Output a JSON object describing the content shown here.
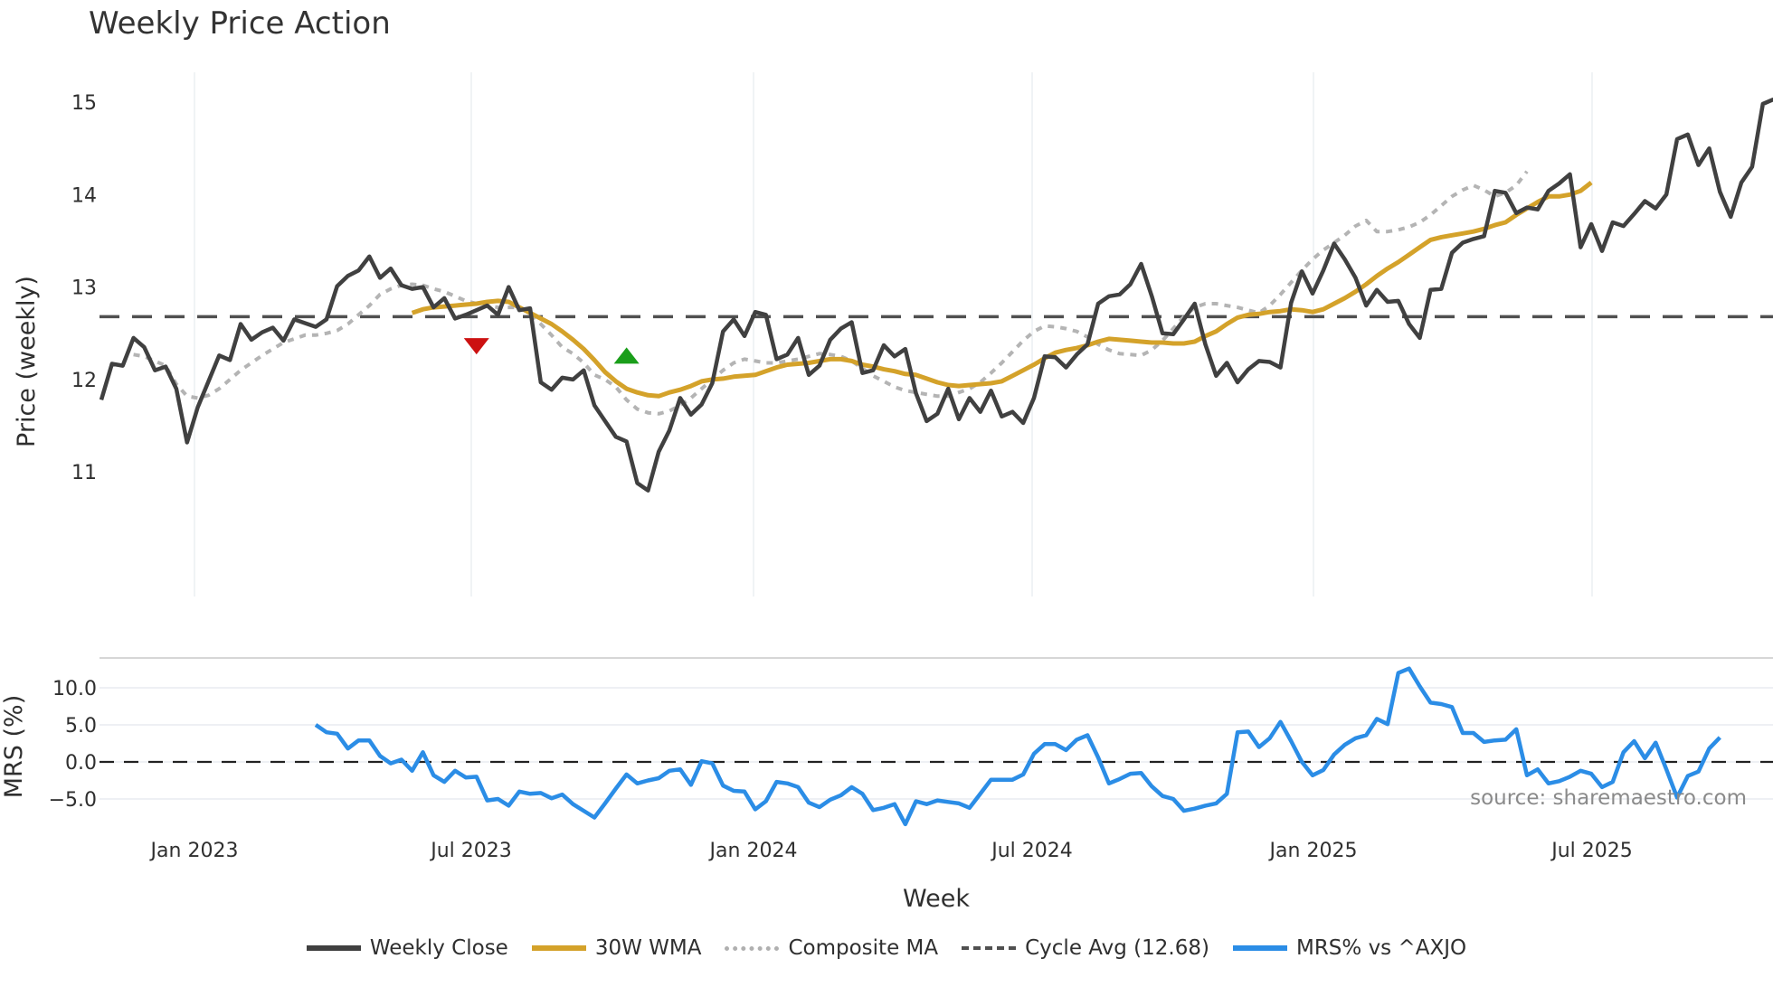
{
  "title": "Weekly Price Action",
  "watermark": "source: sharemaestro.com",
  "legend": [
    {
      "label": "Weekly Close",
      "color": "#404040",
      "style": "solid"
    },
    {
      "label": "30W WMA",
      "color": "#d4a22a",
      "style": "solid"
    },
    {
      "label": "Composite MA",
      "color": "#b0b0b0",
      "style": "dotted"
    },
    {
      "label": "Cycle Avg (12.68)",
      "color": "#505050",
      "style": "dashed"
    },
    {
      "label": "MRS% vs ^AXJO",
      "color": "#2b8de6",
      "style": "solid"
    }
  ],
  "chart_data": [
    {
      "type": "line",
      "title": "Weekly Price Action",
      "xlabel": "Week",
      "ylabel": "Price (weekly)",
      "ylim": [
        10.6,
        15.25
      ],
      "yticks": [
        11,
        12,
        13,
        14,
        15
      ],
      "xticks": [
        "Jan 2023",
        "Jul 2023",
        "Jan 2024",
        "Jul 2024",
        "Jan 2025",
        "Jul 2025"
      ],
      "x_start": "2022-10-31",
      "x_step": "1 week",
      "grid": "vertical only",
      "reference_line": {
        "name": "Cycle Avg",
        "value": 12.68,
        "style": "dashed"
      },
      "markers": [
        {
          "type": "sell",
          "shape": "triangle-down",
          "color": "#cc1111",
          "x_index": 35,
          "value": 12.35
        },
        {
          "type": "buy",
          "shape": "triangle-up",
          "color": "#1a9e1a",
          "x_index": 49,
          "value": 12.25
        }
      ],
      "series": [
        {
          "name": "Weekly Close",
          "start_index": 0,
          "values": [
            11.78,
            12.17,
            12.15,
            12.45,
            12.35,
            12.1,
            12.14,
            11.9,
            11.32,
            11.7,
            11.98,
            12.26,
            12.21,
            12.6,
            12.43,
            12.51,
            12.56,
            12.42,
            12.65,
            12.61,
            12.57,
            12.65,
            13.01,
            13.12,
            13.18,
            13.33,
            13.1,
            13.2,
            13.02,
            12.98,
            13.0,
            12.78,
            12.88,
            12.66,
            12.7,
            12.75,
            12.8,
            12.7,
            13.0,
            12.75,
            12.77,
            11.97,
            11.89,
            12.02,
            12.0,
            12.1,
            11.72,
            11.55,
            11.38,
            11.33,
            10.88,
            10.8,
            11.22,
            11.45,
            11.8,
            11.62,
            11.73,
            11.96,
            12.52,
            12.65,
            12.47,
            12.73,
            12.7,
            12.22,
            12.27,
            12.45,
            12.05,
            12.15,
            12.43,
            12.55,
            12.62,
            12.07,
            12.1,
            12.37,
            12.25,
            12.33,
            11.85,
            11.55,
            11.63,
            11.9,
            11.57,
            11.8,
            11.65,
            11.88,
            11.6,
            11.65,
            11.53,
            11.8,
            12.25,
            12.24,
            12.13,
            12.27,
            12.38,
            12.82,
            12.9,
            12.92,
            13.03,
            13.25,
            12.9,
            12.5,
            12.49,
            12.65,
            12.82,
            12.38,
            12.04,
            12.18,
            11.97,
            12.11,
            12.2,
            12.19,
            12.13,
            12.83,
            13.17,
            12.93,
            13.18,
            13.47,
            13.3,
            13.1,
            12.8,
            12.97,
            12.84,
            12.85,
            12.6,
            12.45,
            12.97,
            12.98,
            13.37,
            13.48,
            13.52,
            13.55,
            14.04,
            14.02,
            13.8,
            13.86,
            13.84,
            14.04,
            14.12,
            14.22,
            13.43,
            13.68,
            13.39,
            13.7,
            13.66,
            13.79,
            13.93,
            13.85,
            14.0,
            14.6,
            14.65,
            14.32,
            14.5,
            14.03,
            13.76,
            14.13,
            14.3,
            14.98,
            15.03
          ]
        },
        {
          "name": "30W WMA",
          "start_index": 29,
          "values": [
            12.72,
            12.76,
            12.78,
            12.79,
            12.8,
            12.81,
            12.82,
            12.84,
            12.85,
            12.84,
            12.78,
            12.72,
            12.66,
            12.6,
            12.52,
            12.43,
            12.33,
            12.21,
            12.08,
            11.98,
            11.9,
            11.86,
            11.83,
            11.82,
            11.86,
            11.89,
            11.93,
            11.98,
            12.0,
            12.01,
            12.03,
            12.04,
            12.05,
            12.09,
            12.13,
            12.16,
            12.17,
            12.18,
            12.2,
            12.22,
            12.22,
            12.2,
            12.16,
            12.14,
            12.11,
            12.09,
            12.06,
            12.05,
            12.01,
            11.97,
            11.94,
            11.93,
            11.94,
            11.95,
            11.96,
            11.98,
            12.04,
            12.1,
            12.16,
            12.23,
            12.29,
            12.32,
            12.34,
            12.37,
            12.41,
            12.44,
            12.43,
            12.42,
            12.41,
            12.4,
            12.4,
            12.39,
            12.39,
            12.41,
            12.47,
            12.52,
            12.6,
            12.67,
            12.7,
            12.71,
            12.73,
            12.74,
            12.76,
            12.75,
            12.73,
            12.76,
            12.82,
            12.88,
            12.95,
            13.03,
            13.12,
            13.2,
            13.27,
            13.35,
            13.43,
            13.51,
            13.54,
            13.56,
            13.58,
            13.6,
            13.63,
            13.67,
            13.7,
            13.78,
            13.85,
            13.92,
            13.98,
            13.98,
            14.0,
            14.04,
            14.13
          ]
        },
        {
          "name": "Composite MA",
          "start_index": 3,
          "values": [
            12.27,
            12.25,
            12.2,
            12.15,
            11.95,
            11.82,
            11.8,
            11.83,
            11.9,
            12.0,
            12.1,
            12.18,
            12.26,
            12.33,
            12.4,
            12.44,
            12.48,
            12.48,
            12.5,
            12.53,
            12.6,
            12.7,
            12.8,
            12.92,
            12.98,
            13.02,
            13.03,
            13.02,
            12.98,
            12.95,
            12.9,
            12.85,
            12.82,
            12.8,
            12.78,
            12.78,
            12.78,
            12.72,
            12.6,
            12.48,
            12.35,
            12.28,
            12.18,
            12.05,
            12.0,
            11.92,
            11.78,
            11.68,
            11.64,
            11.63,
            11.66,
            11.72,
            11.8,
            11.9,
            12.0,
            12.1,
            12.18,
            12.22,
            12.2,
            12.18,
            12.18,
            12.2,
            12.22,
            12.25,
            12.28,
            12.27,
            12.25,
            12.2,
            12.12,
            12.04,
            11.98,
            11.92,
            11.88,
            11.86,
            11.84,
            11.82,
            11.82,
            11.86,
            11.9,
            11.97,
            12.07,
            12.18,
            12.3,
            12.42,
            12.52,
            12.58,
            12.57,
            12.55,
            12.52,
            12.46,
            12.38,
            12.32,
            12.28,
            12.27,
            12.26,
            12.32,
            12.42,
            12.55,
            12.68,
            12.78,
            12.82,
            12.82,
            12.8,
            12.78,
            12.75,
            12.72,
            12.8,
            12.92,
            13.05,
            13.18,
            13.3,
            13.4,
            13.48,
            13.56,
            13.66,
            13.72,
            13.6,
            13.6,
            13.62,
            13.65,
            13.7,
            13.78,
            13.88,
            13.98,
            14.05,
            14.1,
            14.05,
            13.98,
            14.02,
            14.1,
            14.25
          ]
        },
        {
          "name": "MRS% vs ^AXJO",
          "panel": "lower",
          "start_index": 20,
          "values": [
            5.0,
            4.0,
            3.8,
            1.8,
            2.9,
            2.9,
            0.8,
            -0.2,
            0.3,
            -1.2,
            1.3,
            -1.8,
            -2.7,
            -1.2,
            -2.1,
            -2.0,
            -5.2,
            -5.0,
            -5.9,
            -4.0,
            -4.3,
            -4.2,
            -4.9,
            -4.4,
            -5.7,
            -6.6,
            -7.5,
            -5.6,
            -3.6,
            -1.7,
            -2.9,
            -2.5,
            -2.2,
            -1.2,
            -1.0,
            -3.1,
            0.1,
            -0.2,
            -3.2,
            -3.9,
            -4.0,
            -6.4,
            -5.3,
            -2.7,
            -2.9,
            -3.4,
            -5.5,
            -6.1,
            -5.1,
            -4.5,
            -3.4,
            -4.3,
            -6.5,
            -6.2,
            -5.7,
            -8.4,
            -5.3,
            -5.7,
            -5.2,
            -5.4,
            -5.6,
            -6.2,
            -4.3,
            -2.4,
            -2.4,
            -2.4,
            -1.7,
            1.1,
            2.4,
            2.4,
            1.6,
            3.0,
            3.6,
            0.6,
            -2.9,
            -2.3,
            -1.6,
            -1.5,
            -3.3,
            -4.6,
            -5.0,
            -6.6,
            -6.3,
            -5.9,
            -5.6,
            -4.3,
            4.0,
            4.1,
            2.0,
            3.2,
            5.4,
            2.8,
            0.0,
            -1.8,
            -1.1,
            1.0,
            2.3,
            3.2,
            3.6,
            5.8,
            5.1,
            12.0,
            12.6,
            10.2,
            8.0,
            7.8,
            7.4,
            3.9,
            3.9,
            2.7,
            2.9,
            3.0,
            4.4,
            -1.8,
            -1.0,
            -2.9,
            -2.6,
            -2.0,
            -1.2,
            -1.6,
            -3.4,
            -2.7,
            1.3,
            2.8,
            0.5,
            2.6,
            -1.0,
            -4.8,
            -1.9,
            -1.3,
            1.8,
            3.3
          ]
        }
      ]
    },
    {
      "type": "line",
      "panel": "lower",
      "ylabel": "MRS (%)",
      "yticks": [
        10.0,
        5.0,
        0.0,
        -5.0
      ],
      "ylim": [
        -9.5,
        14.5
      ],
      "reference_line": {
        "value": 0.0,
        "style": "dashed"
      }
    }
  ]
}
